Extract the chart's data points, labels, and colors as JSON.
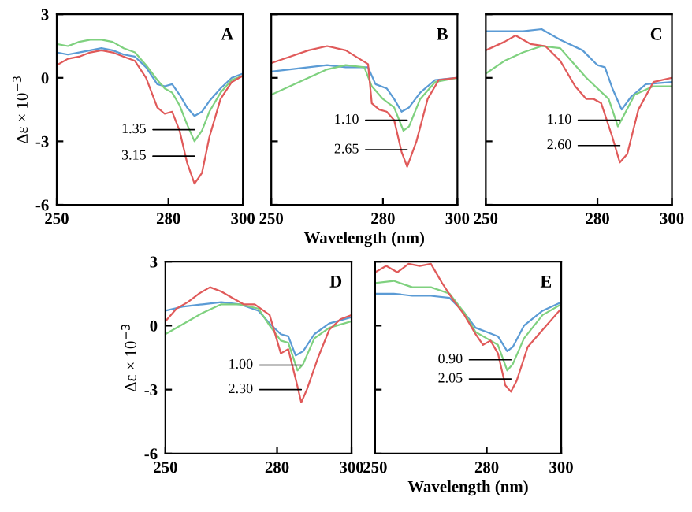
{
  "chart_data": [
    {
      "type": "line",
      "title": "A",
      "ylabel": "Δε × 10$^{−3}$",
      "xlim": [
        250,
        300
      ],
      "xticks": [
        250,
        280,
        300
      ],
      "ylim": [
        -6,
        3
      ],
      "yticks": [
        -6,
        -3,
        0,
        3
      ],
      "series": [
        {
          "color": "#5b9bd5",
          "x": [
            250,
            253,
            256,
            259,
            262,
            265,
            268,
            271,
            274,
            277,
            279,
            281,
            283,
            285,
            287,
            289,
            291,
            294,
            297,
            300
          ],
          "values": [
            1.2,
            1.1,
            1.2,
            1.3,
            1.4,
            1.3,
            1.1,
            1.0,
            0.5,
            -0.3,
            -0.4,
            -0.3,
            -0.8,
            -1.4,
            -1.8,
            -1.6,
            -1.1,
            -0.5,
            0.0,
            0.2
          ]
        },
        {
          "color": "#7fd17f",
          "x": [
            250,
            253,
            256,
            259,
            262,
            265,
            268,
            271,
            274,
            277,
            279,
            281,
            283,
            285,
            287,
            289,
            291,
            294,
            297,
            300
          ],
          "values": [
            1.6,
            1.5,
            1.7,
            1.8,
            1.8,
            1.7,
            1.4,
            1.2,
            0.6,
            -0.1,
            -0.5,
            -0.7,
            -1.3,
            -2.2,
            -3.0,
            -2.5,
            -1.6,
            -0.7,
            -0.1,
            0.1
          ]
        },
        {
          "color": "#e05a5a",
          "x": [
            250,
            253,
            256,
            259,
            262,
            265,
            268,
            271,
            274,
            277,
            279,
            281,
            283,
            285,
            287,
            289,
            291,
            294,
            297,
            300
          ],
          "values": [
            0.6,
            0.9,
            1.0,
            1.2,
            1.3,
            1.2,
            1.0,
            0.8,
            0.0,
            -1.4,
            -1.7,
            -1.6,
            -2.5,
            -4.0,
            -5.0,
            -4.5,
            -2.8,
            -1.0,
            -0.2,
            0.1
          ]
        }
      ],
      "annotations": [
        {
          "text": "1.35",
          "x": 287,
          "y": -2.45
        },
        {
          "text": "3.15",
          "x": 287,
          "y": -3.7
        }
      ]
    },
    {
      "type": "line",
      "title": "B",
      "xlabel": "Wavelength (nm)",
      "xlim": [
        250,
        300
      ],
      "xticks": [
        250,
        280,
        300
      ],
      "ylim": [
        -6,
        3
      ],
      "yticks": [
        -6,
        -3,
        0,
        3
      ],
      "tick_labels": "x",
      "series": [
        {
          "color": "#5b9bd5",
          "x": [
            250,
            255,
            260,
            265,
            270,
            276,
            278,
            281,
            283,
            285,
            287,
            290,
            294,
            300
          ],
          "values": [
            0.3,
            0.4,
            0.5,
            0.6,
            0.5,
            0.5,
            -0.3,
            -0.5,
            -1.0,
            -1.6,
            -1.4,
            -0.7,
            -0.1,
            0.0
          ]
        },
        {
          "color": "#7fd17f",
          "x": [
            250,
            255,
            260,
            265,
            270,
            275,
            277,
            280,
            283,
            285.5,
            287,
            290,
            294,
            300
          ],
          "values": [
            -0.8,
            -0.4,
            0.0,
            0.4,
            0.6,
            0.5,
            -0.4,
            -1.0,
            -1.4,
            -2.5,
            -2.3,
            -1.0,
            -0.2,
            0.0
          ]
        },
        {
          "color": "#e05a5a",
          "x": [
            250,
            255,
            260,
            265,
            270,
            276,
            277,
            279,
            281,
            283,
            285,
            286.5,
            289,
            292,
            295,
            300
          ],
          "values": [
            0.7,
            1.0,
            1.3,
            1.5,
            1.3,
            0.65,
            -1.2,
            -1.5,
            -1.6,
            -2.0,
            -3.5,
            -4.2,
            -3.0,
            -1.0,
            -0.1,
            0.0
          ]
        }
      ],
      "annotations": [
        {
          "text": "1.10",
          "x": 286.5,
          "y": -2.0
        },
        {
          "text": "2.65",
          "x": 286.5,
          "y": -3.4
        }
      ]
    },
    {
      "type": "line",
      "title": "C",
      "xlim": [
        250,
        300
      ],
      "xticks": [
        250,
        280,
        300
      ],
      "ylim": [
        -6,
        3
      ],
      "yticks": [
        -6,
        -3,
        0,
        3
      ],
      "tick_labels": "x",
      "series": [
        {
          "color": "#5b9bd5",
          "x": [
            250,
            260,
            265,
            270,
            276,
            280,
            282,
            284,
            286.5,
            289,
            293,
            300
          ],
          "values": [
            2.2,
            2.2,
            2.3,
            1.8,
            1.3,
            0.6,
            0.5,
            -0.5,
            -1.5,
            -0.9,
            -0.3,
            -0.2
          ]
        },
        {
          "color": "#7fd17f",
          "x": [
            250,
            255,
            260,
            265,
            270,
            274,
            277,
            280,
            283,
            285.5,
            287,
            290,
            295,
            300
          ],
          "values": [
            0.2,
            0.8,
            1.2,
            1.5,
            1.4,
            0.6,
            0.0,
            -0.5,
            -1.0,
            -2.3,
            -1.8,
            -0.8,
            -0.4,
            -0.4
          ]
        },
        {
          "color": "#e05a5a",
          "x": [
            250,
            255,
            258,
            262,
            266,
            270,
            274,
            277,
            279,
            281,
            284,
            286,
            288,
            291,
            295,
            300
          ],
          "values": [
            1.3,
            1.7,
            2.0,
            1.6,
            1.5,
            0.8,
            -0.4,
            -1.0,
            -1.0,
            -1.2,
            -2.8,
            -4.0,
            -3.6,
            -1.5,
            -0.2,
            0.0
          ]
        }
      ],
      "annotations": [
        {
          "text": "1.10",
          "x": 286,
          "y": -2.0
        },
        {
          "text": "2.60",
          "x": 286,
          "y": -3.2
        }
      ]
    },
    {
      "type": "line",
      "title": "D",
      "ylabel": "Δε × 10$^{−3}$",
      "xlim": [
        250,
        300
      ],
      "xticks": [
        250,
        280,
        300
      ],
      "ylim": [
        -6,
        3
      ],
      "yticks": [
        -6,
        -3,
        0,
        3
      ],
      "series": [
        {
          "color": "#5b9bd5",
          "x": [
            250,
            255,
            260,
            265,
            270,
            275,
            278,
            281,
            283,
            285,
            287,
            290,
            294,
            300
          ],
          "values": [
            0.7,
            0.9,
            1.0,
            1.1,
            1.0,
            0.7,
            0.1,
            -0.4,
            -0.5,
            -1.4,
            -1.2,
            -0.4,
            0.1,
            0.4
          ]
        },
        {
          "color": "#7fd17f",
          "x": [
            250,
            255,
            260,
            265,
            270,
            275,
            278,
            281,
            283,
            285.5,
            287,
            290,
            294,
            300
          ],
          "values": [
            -0.4,
            0.1,
            0.6,
            1.0,
            1.0,
            0.8,
            0.0,
            -0.7,
            -0.8,
            -2.1,
            -1.8,
            -0.6,
            -0.1,
            0.2
          ]
        },
        {
          "color": "#e05a5a",
          "x": [
            250,
            253,
            256,
            259,
            262,
            265,
            268,
            271,
            274,
            278,
            281,
            283,
            285,
            286.5,
            288,
            291,
            294,
            297,
            300
          ],
          "values": [
            0.2,
            0.8,
            1.1,
            1.5,
            1.8,
            1.6,
            1.3,
            1.0,
            1.0,
            0.5,
            -1.3,
            -1.1,
            -2.5,
            -3.6,
            -3.0,
            -1.5,
            -0.2,
            0.3,
            0.5
          ]
        }
      ],
      "annotations": [
        {
          "text": "1.00",
          "x": 286.5,
          "y": -1.85
        },
        {
          "text": "2.30",
          "x": 286.5,
          "y": -3.0
        }
      ]
    },
    {
      "type": "line",
      "title": "E",
      "xlabel": "Wavelength (nm)",
      "xlim": [
        250,
        300
      ],
      "xticks": [
        250,
        280,
        300
      ],
      "ylim": [
        -6,
        3
      ],
      "yticks": [
        -6,
        -3,
        0,
        3
      ],
      "tick_labels": "x",
      "series": [
        {
          "color": "#5b9bd5",
          "x": [
            250,
            255,
            260,
            265,
            270,
            274,
            277,
            280,
            283,
            285.5,
            287,
            290,
            295,
            300
          ],
          "values": [
            1.5,
            1.5,
            1.4,
            1.4,
            1.3,
            0.6,
            -0.1,
            -0.3,
            -0.5,
            -1.2,
            -1.0,
            0.0,
            0.7,
            1.1
          ]
        },
        {
          "color": "#7fd17f",
          "x": [
            250,
            255,
            260,
            265,
            270,
            274,
            277,
            280,
            283,
            285.5,
            287,
            290,
            295,
            300
          ],
          "values": [
            2.0,
            2.1,
            1.8,
            1.8,
            1.5,
            0.6,
            -0.3,
            -0.6,
            -0.9,
            -2.1,
            -1.8,
            -0.6,
            0.5,
            1.0
          ]
        },
        {
          "color": "#e05a5a",
          "x": [
            250,
            253,
            256,
            259,
            262,
            265,
            268,
            271,
            274,
            277,
            279,
            281,
            283,
            285,
            286.5,
            288,
            291,
            295,
            300
          ],
          "values": [
            2.5,
            2.8,
            2.5,
            2.9,
            2.8,
            2.9,
            2.0,
            1.2,
            0.5,
            -0.4,
            -0.9,
            -0.7,
            -1.3,
            -2.8,
            -3.1,
            -2.6,
            -1.0,
            -0.2,
            0.8
          ]
        }
      ],
      "annotations": [
        {
          "text": "0.90",
          "x": 286.5,
          "y": -1.6
        },
        {
          "text": "2.05",
          "x": 286.5,
          "y": -2.5
        }
      ]
    }
  ]
}
